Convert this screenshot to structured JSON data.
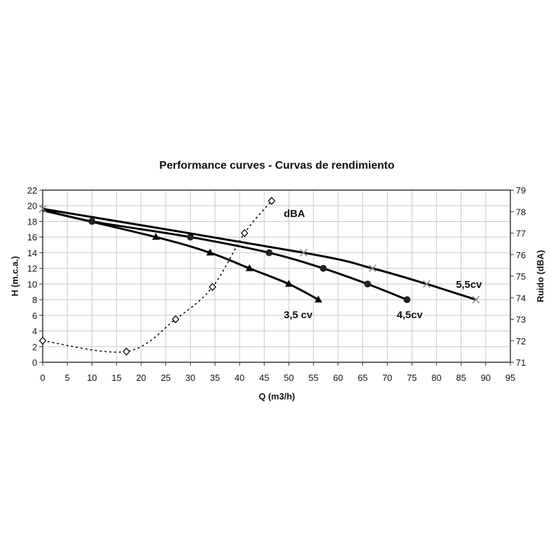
{
  "chart_data": {
    "type": "line",
    "title": "Performance curves - Curvas de rendimiento",
    "xlabel": "Q (m3/h)",
    "ylabel": "H (m.c.a.)",
    "y2label": "Ruido (dBA)",
    "xlim": [
      0,
      95
    ],
    "ylim": [
      0,
      22
    ],
    "y2lim": [
      71,
      79
    ],
    "xticks": [
      0,
      5,
      10,
      15,
      20,
      25,
      30,
      35,
      40,
      45,
      50,
      55,
      60,
      65,
      70,
      75,
      80,
      85,
      90,
      95
    ],
    "yticks": [
      0,
      2,
      4,
      6,
      8,
      10,
      12,
      14,
      16,
      18,
      20,
      22
    ],
    "y2ticks": [
      71,
      72,
      73,
      74,
      75,
      76,
      77,
      78,
      79
    ],
    "grid": true,
    "series": [
      {
        "name": "3,5 cv",
        "axis": "left",
        "marker": "triangle",
        "color": "#000000",
        "x": [
          0,
          23,
          34,
          42,
          50,
          56
        ],
        "y": [
          19.4,
          16,
          14,
          12,
          10,
          8
        ]
      },
      {
        "name": "4,5cv",
        "axis": "left",
        "marker": "circle",
        "color": "#000000",
        "x": [
          0,
          10,
          30,
          46,
          57,
          66,
          74
        ],
        "y": [
          19.5,
          18,
          16,
          14,
          12,
          10,
          8
        ]
      },
      {
        "name": "5,5cv",
        "axis": "left",
        "marker": "cross",
        "color": "#000000",
        "marker_color": "#888888",
        "x": [
          0,
          53,
          67,
          78,
          88
        ],
        "y": [
          19.6,
          14,
          12,
          10,
          8
        ]
      },
      {
        "name": "dBA",
        "axis": "right",
        "marker": "diamond",
        "color": "#000000",
        "dashed": true,
        "x": [
          0,
          17,
          27,
          34.5,
          41,
          46.5
        ],
        "y": [
          72,
          71.5,
          73,
          74.5,
          77,
          78.5
        ]
      }
    ]
  }
}
